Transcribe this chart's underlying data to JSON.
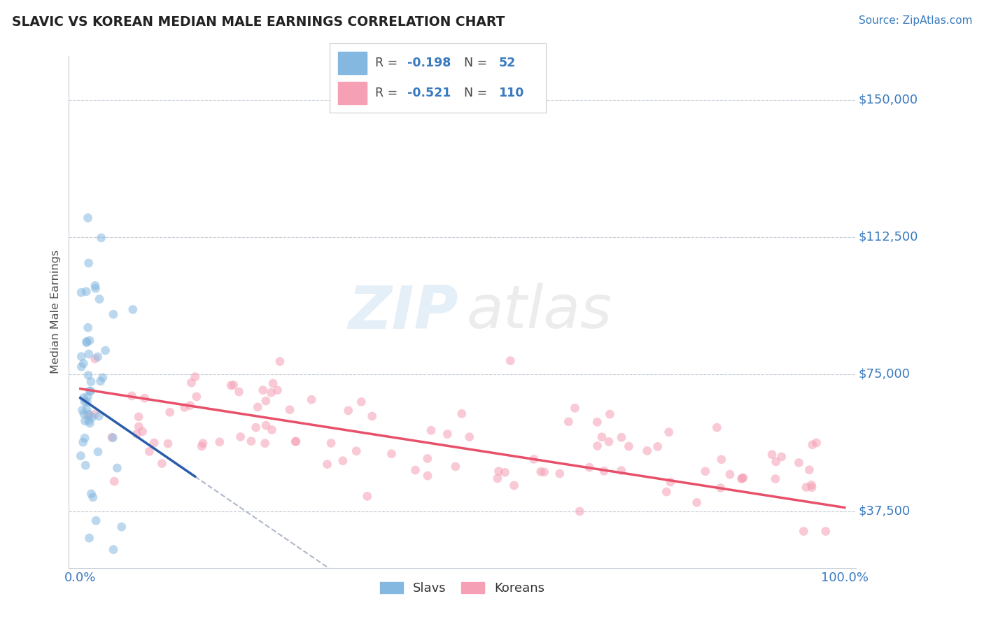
{
  "title": "SLAVIC VS KOREAN MEDIAN MALE EARNINGS CORRELATION CHART",
  "source": "Source: ZipAtlas.com",
  "ylabel_ticks": [
    37500,
    75000,
    112500,
    150000
  ],
  "ylabel_tick_labels": [
    "$37,500",
    "$75,000",
    "$112,500",
    "$150,000"
  ],
  "ylim": [
    22000,
    162000
  ],
  "xlim": [
    -1.5,
    101.5
  ],
  "slavs_R": -0.198,
  "slavs_N": 52,
  "koreans_R": -0.521,
  "koreans_N": 110,
  "slavs_color": "#85b8e0",
  "koreans_color": "#f5a0b5",
  "slavs_line_color": "#2a5caa",
  "koreans_line_color": "#e8506a",
  "dashed_line_color": "#b0b8c8",
  "background_color": "#ffffff",
  "grid_color": "#c8cdd8",
  "title_color": "#222222",
  "axis_label_color": "#3a7abf",
  "watermark_color_zip": "#85b8e0",
  "watermark_color_atlas": "#aaaaaa",
  "marker_size": 85,
  "marker_alpha": 0.55,
  "slavs_line_x0": 0.0,
  "slavs_line_y0": 68500,
  "slavs_line_x1": 15.0,
  "slavs_line_y1": 47000,
  "koreans_line_x0": 0.0,
  "koreans_line_y0": 71000,
  "koreans_line_x1": 100.0,
  "koreans_line_y1": 38500
}
